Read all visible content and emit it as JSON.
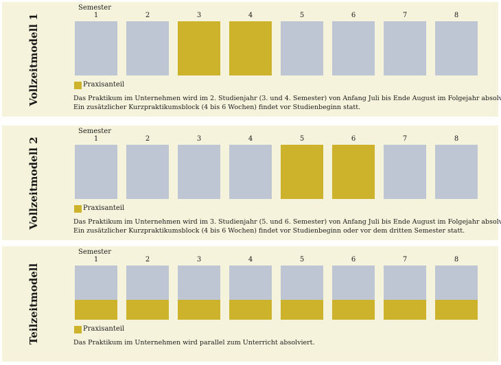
{
  "semester_label": "Semester",
  "legend_label": "Praxisanteil",
  "colors": {
    "panel_bg": "#f6f3dc",
    "semester_block": "#bec5d3",
    "praxis_block": "#cdb22c"
  },
  "models": [
    {
      "title": "Vollzeitmodell 1",
      "semesters": [
        {
          "label": "1",
          "praxis_share": 0
        },
        {
          "label": "2",
          "praxis_share": 0
        },
        {
          "label": "3",
          "praxis_share": 1
        },
        {
          "label": "4",
          "praxis_share": 1
        },
        {
          "label": "5",
          "praxis_share": 0
        },
        {
          "label": "6",
          "praxis_share": 0
        },
        {
          "label": "7",
          "praxis_share": 0
        },
        {
          "label": "8",
          "praxis_share": 0
        }
      ],
      "description_lines": [
        "Das Praktikum im Unternehmen wird im 2. Studienjahr (3. und 4. Semester) von Anfang Juli bis Ende August im Folgejahr absolviert.",
        "Ein zusätzlicher Kurzpraktikumsblock (4 bis 6 Wochen) findet vor Studienbeginn statt."
      ]
    },
    {
      "title": "Vollzeitmodell 2",
      "semesters": [
        {
          "label": "1",
          "praxis_share": 0
        },
        {
          "label": "2",
          "praxis_share": 0
        },
        {
          "label": "3",
          "praxis_share": 0
        },
        {
          "label": "4",
          "praxis_share": 0
        },
        {
          "label": "5",
          "praxis_share": 1
        },
        {
          "label": "6",
          "praxis_share": 1
        },
        {
          "label": "7",
          "praxis_share": 0
        },
        {
          "label": "8",
          "praxis_share": 0
        }
      ],
      "description_lines": [
        "Das Praktikum im Unternehmen wird im 3. Studienjahr (5. und 6. Semester) von Anfang Juli bis Ende August im Folgejahr absolviert.",
        "Ein zusätzlicher Kurzpraktikumsblock (4 bis 6 Wochen) findet vor Studienbeginn oder vor dem dritten Semester statt."
      ]
    },
    {
      "title": "Teilzeitmodell",
      "semesters": [
        {
          "label": "1",
          "praxis_share": 0.37
        },
        {
          "label": "2",
          "praxis_share": 0.37
        },
        {
          "label": "3",
          "praxis_share": 0.37
        },
        {
          "label": "4",
          "praxis_share": 0.37
        },
        {
          "label": "5",
          "praxis_share": 0.37
        },
        {
          "label": "6",
          "praxis_share": 0.37
        },
        {
          "label": "7",
          "praxis_share": 0.37
        },
        {
          "label": "8",
          "praxis_share": 0.37
        }
      ],
      "description_lines": [
        "Das Praktikum im Unternehmen wird parallel zum Unterricht absolviert."
      ]
    }
  ]
}
